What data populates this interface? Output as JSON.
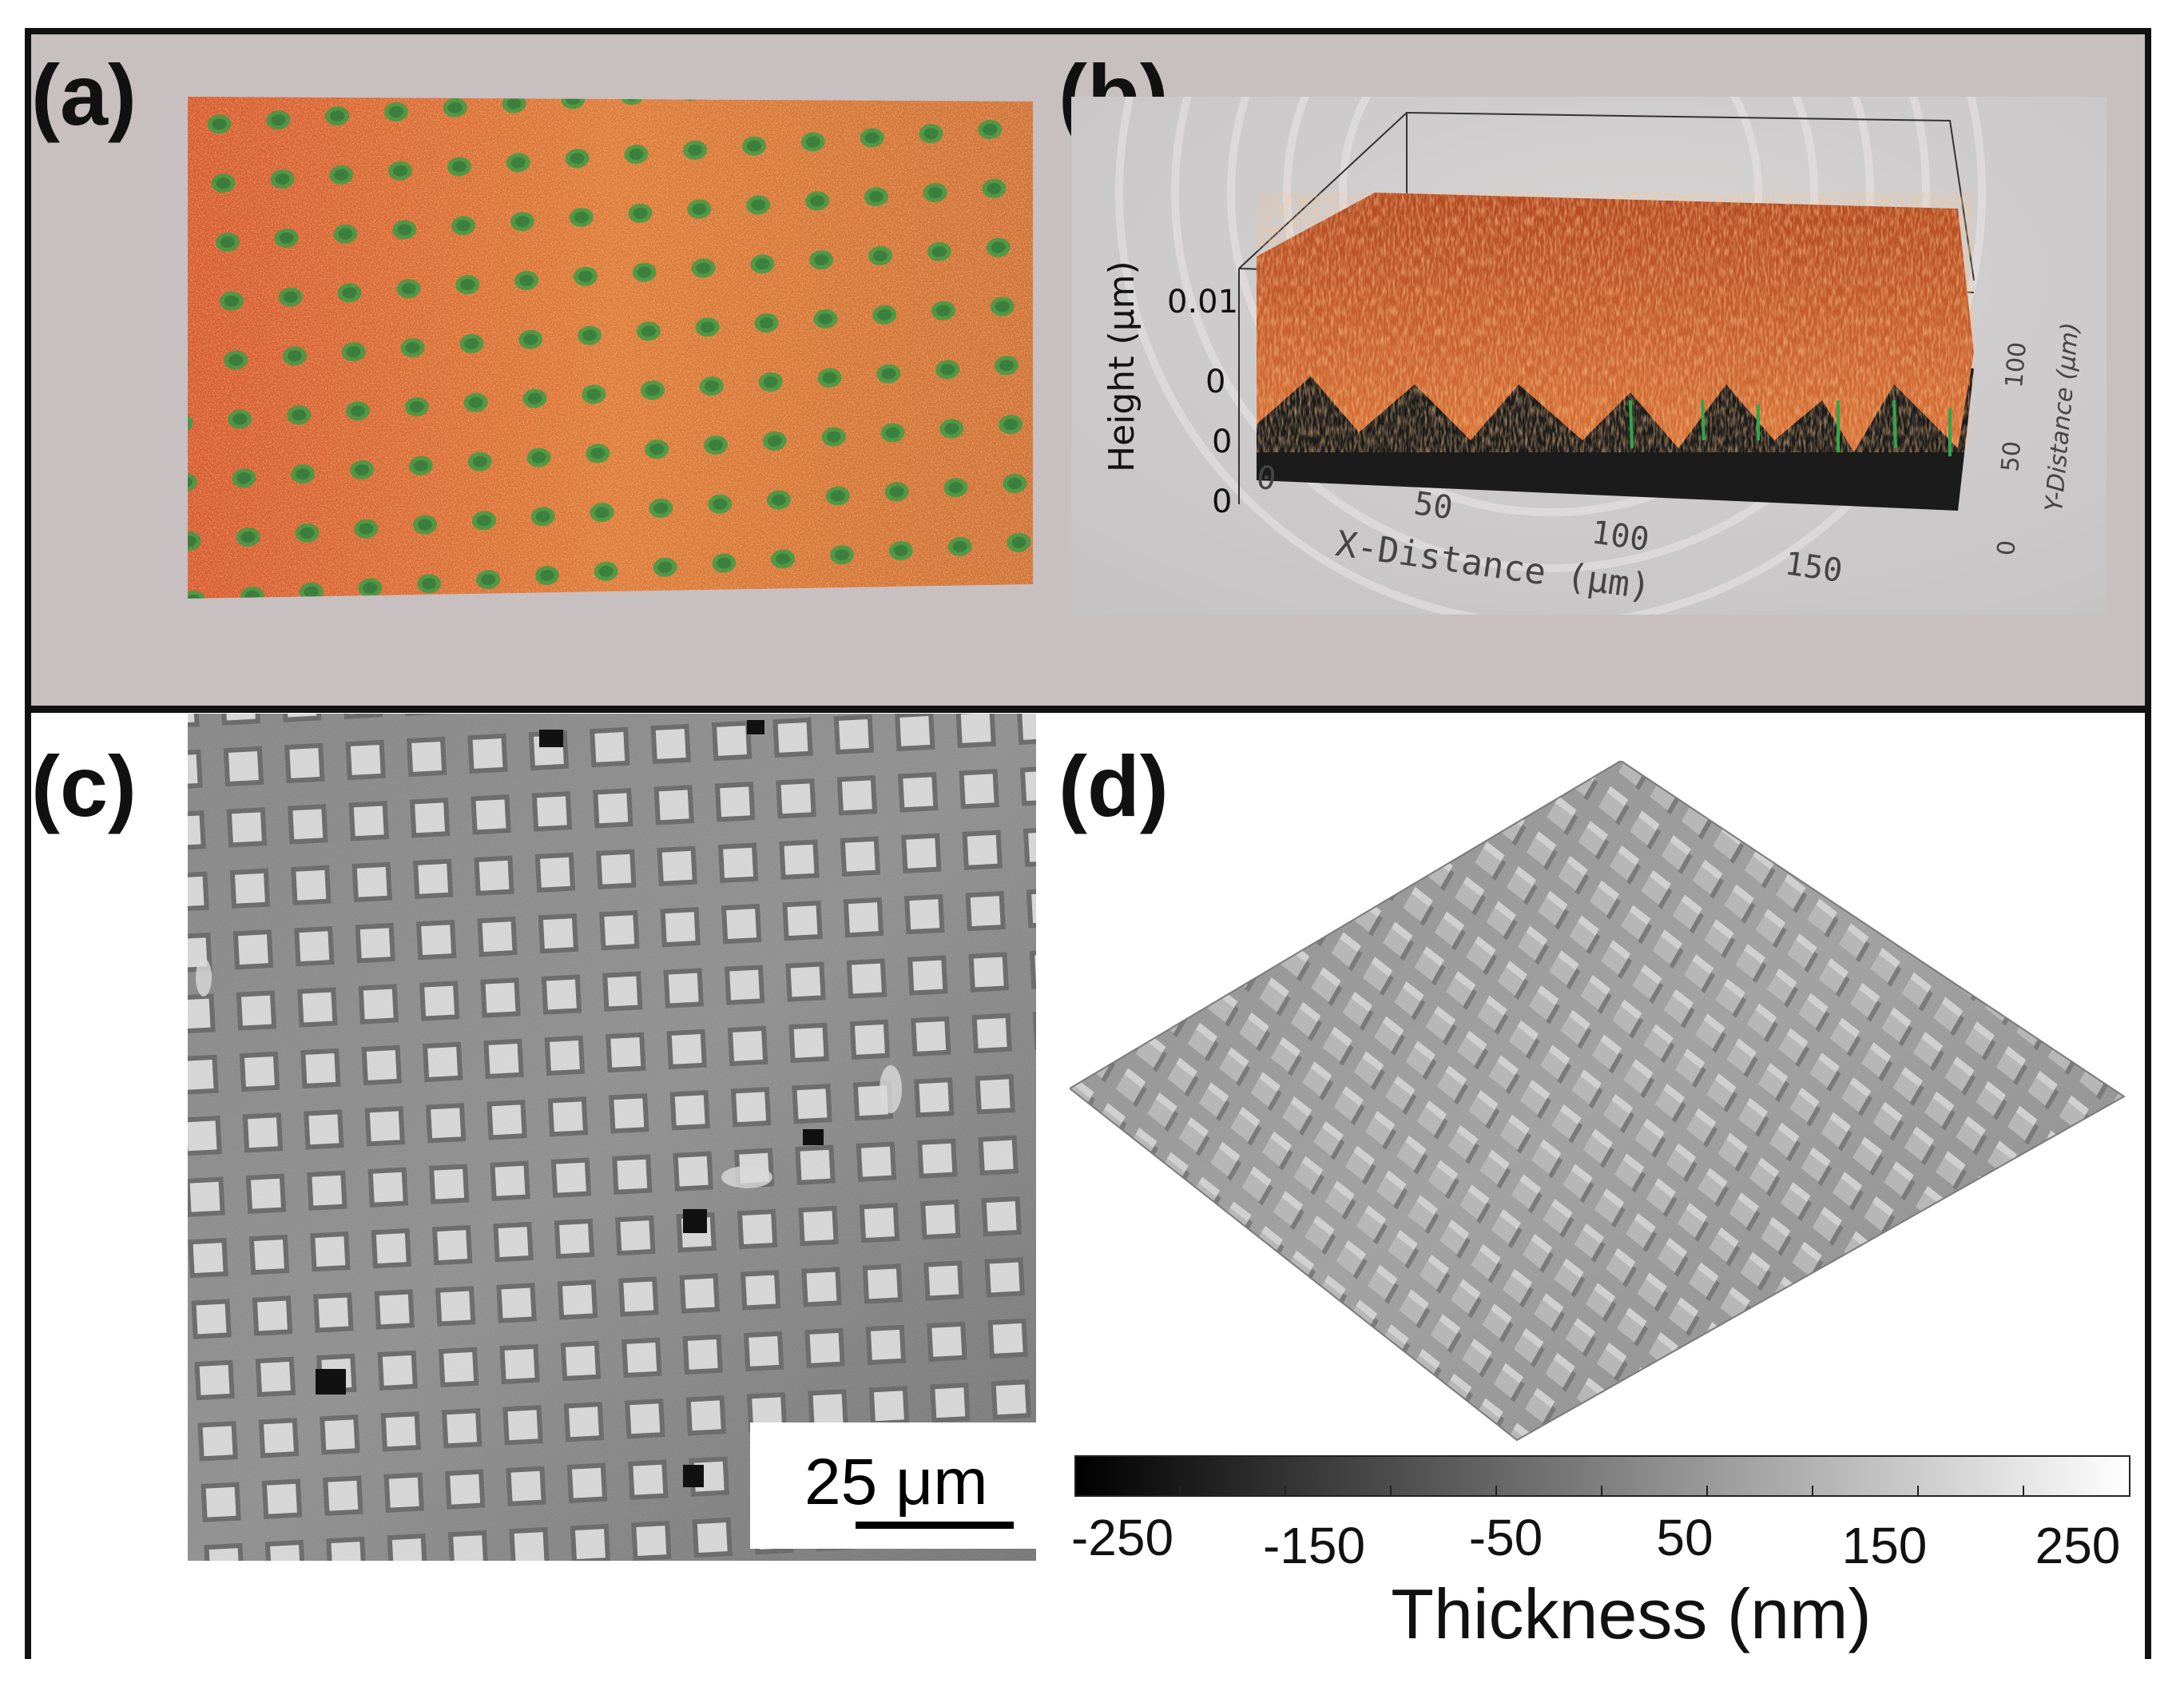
{
  "panels": {
    "a": {
      "label": "(a)"
    },
    "b": {
      "label": "(b)",
      "z_axis_label": "Height (μm)",
      "z_ticks": [
        "0.01",
        "0",
        "0",
        "0"
      ],
      "x_axis_label": "X-Distance (μm)",
      "x_ticks": [
        "0",
        "50",
        "100",
        "150"
      ],
      "y_axis_label": "Y-Distance (μm)",
      "y_ticks": [
        "0",
        "50",
        "100"
      ]
    },
    "c": {
      "label": "(c)",
      "scale_bar_text": "25 μm"
    },
    "d": {
      "label": "(d)",
      "colorbar_ticks": [
        "-250",
        "-150",
        "-50",
        "50",
        "150",
        "250"
      ],
      "colorbar_title": "Thickness (nm)"
    }
  },
  "colors": {
    "top_background": "#c8bfc0",
    "surface_orange": "#d8653a",
    "surface_green": "#2fa84a",
    "frame": "#111111"
  }
}
